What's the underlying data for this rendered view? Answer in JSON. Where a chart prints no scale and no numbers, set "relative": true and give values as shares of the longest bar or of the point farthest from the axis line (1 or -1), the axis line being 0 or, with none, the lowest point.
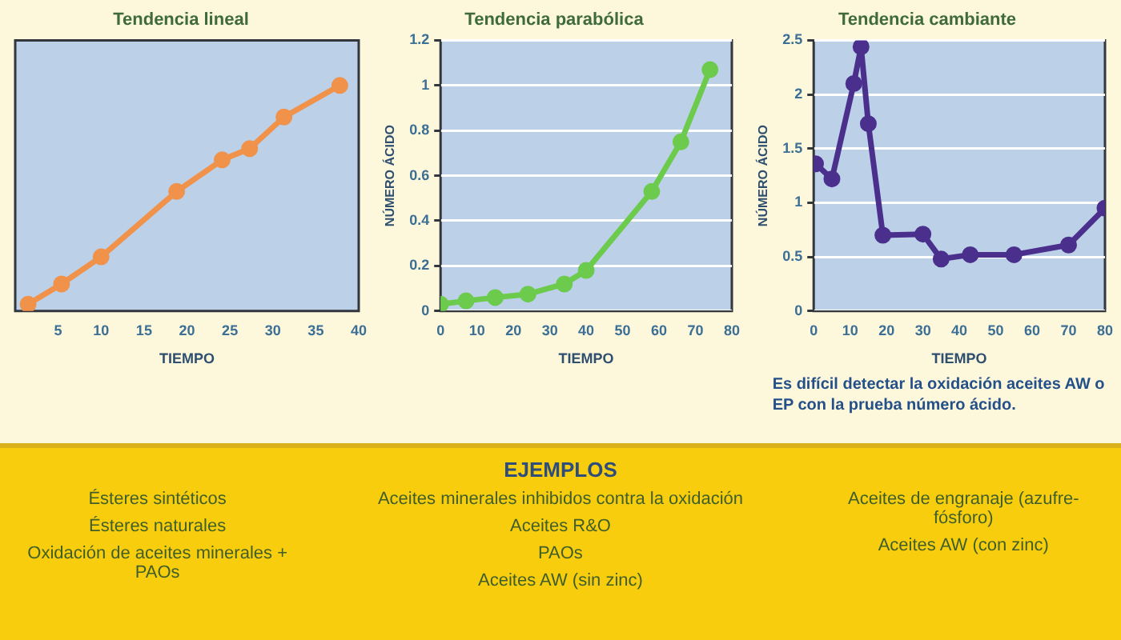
{
  "chart_data": [
    {
      "type": "line",
      "title": "Tendencia lineal",
      "xlabel": "TIEMPO",
      "relative": true,
      "color": "#f0924a",
      "marker": "circle",
      "xlim": [
        0,
        40
      ],
      "xticks": [
        5,
        10,
        15,
        20,
        25,
        30,
        35,
        40
      ],
      "x": [
        1.5,
        5.4,
        10,
        18.8,
        24.1,
        27.3,
        31.3,
        37.8
      ],
      "values": [
        0.03,
        0.12,
        0.24,
        0.53,
        0.67,
        0.72,
        0.86,
        1
      ]
    },
    {
      "type": "line",
      "title": "Tendencia parabólica",
      "xlabel": "TIEMPO",
      "ylabel": "NÚMERO ÁCIDO",
      "color": "#6ccb4c",
      "marker": "circle",
      "grid": "y",
      "xlim": [
        0,
        80
      ],
      "xticks": [
        0,
        10,
        20,
        30,
        40,
        50,
        60,
        70,
        80
      ],
      "ylim": [
        0,
        1.2
      ],
      "yticks": [
        0,
        0.2,
        0.4,
        0.6,
        0.8,
        1,
        1.2
      ],
      "x": [
        0,
        7,
        15,
        24,
        34,
        40,
        58,
        66,
        74
      ],
      "values": [
        0.03,
        0.045,
        0.06,
        0.075,
        0.12,
        0.18,
        0.53,
        0.75,
        1.07
      ]
    },
    {
      "type": "line",
      "title": "Tendencia cambiante",
      "xlabel": "TIEMPO",
      "ylabel": "NÚMERO ÁCIDO",
      "color": "#4a2f8c",
      "marker": "circle",
      "grid": "y",
      "xlim": [
        0,
        80
      ],
      "xticks": [
        0,
        10,
        20,
        30,
        40,
        50,
        60,
        70,
        80
      ],
      "ylim": [
        0,
        2.5
      ],
      "yticks": [
        0,
        0.5,
        1,
        1.5,
        2,
        2.5
      ],
      "x": [
        0.5,
        5,
        11,
        13,
        15,
        19,
        30,
        35,
        43,
        55,
        70,
        80
      ],
      "values": [
        1.36,
        1.22,
        2.1,
        2.44,
        1.73,
        0.7,
        0.71,
        0.48,
        0.52,
        0.52,
        0.61,
        0.95
      ],
      "annotations": [
        "Es difícil detectar la oxidación aceites AW o EP con la prueba número ácido."
      ]
    },
    {
      "type": "other",
      "annotations": [
        "Ésteres sintéticos",
        "Ésteres naturales",
        "Oxidación de aceites minerales + PAOs"
      ]
    },
    {
      "type": "other",
      "title": "EJEMPLOS",
      "annotations": [
        "Aceites minerales inhibidos contra la oxidación",
        "Aceites R&O",
        "PAOs",
        "Aceites AW (sin zinc)"
      ]
    },
    {
      "type": "other",
      "annotations": [
        "Aceites de engranaje (azufre-fósforo)",
        "Aceites AW (con zinc)"
      ]
    }
  ]
}
